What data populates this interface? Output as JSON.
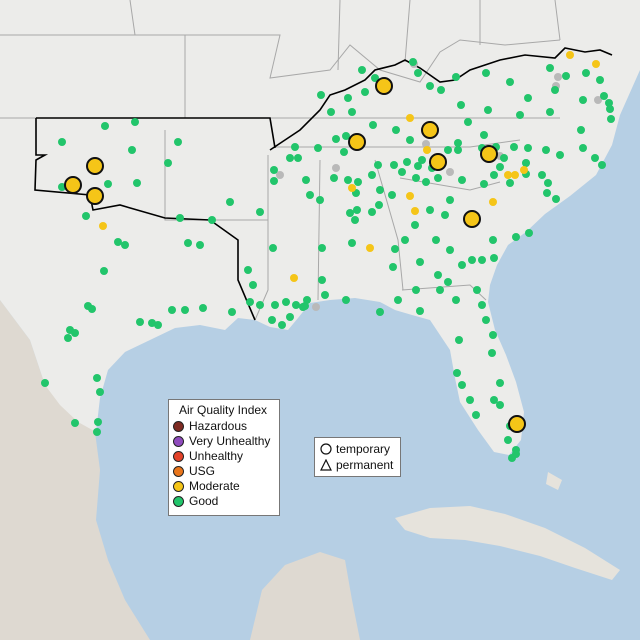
{
  "map": {
    "region": "Southeastern United States",
    "colors": {
      "water": "#b6cfe4",
      "land": "#ececea",
      "mexico": "#ded9d1",
      "cuba": "#e6e3dc",
      "region_outline": "#000000",
      "state_border": "#a8a8a8"
    }
  },
  "legend": {
    "title": "Air Quality Index",
    "categories": [
      {
        "label": "Hazardous",
        "color": "#7e2b22"
      },
      {
        "label": "Very Unhealthy",
        "color": "#8f4bbd"
      },
      {
        "label": "Unhealthy",
        "color": "#e34229"
      },
      {
        "label": "USG",
        "color": "#e9751b"
      },
      {
        "label": "Moderate",
        "color": "#f5c518"
      },
      {
        "label": "Good",
        "color": "#22c56b"
      }
    ]
  },
  "monitor_types": {
    "items": [
      {
        "label": "temporary",
        "shape": "circle"
      },
      {
        "label": "permanent",
        "shape": "triangle"
      }
    ]
  }
}
